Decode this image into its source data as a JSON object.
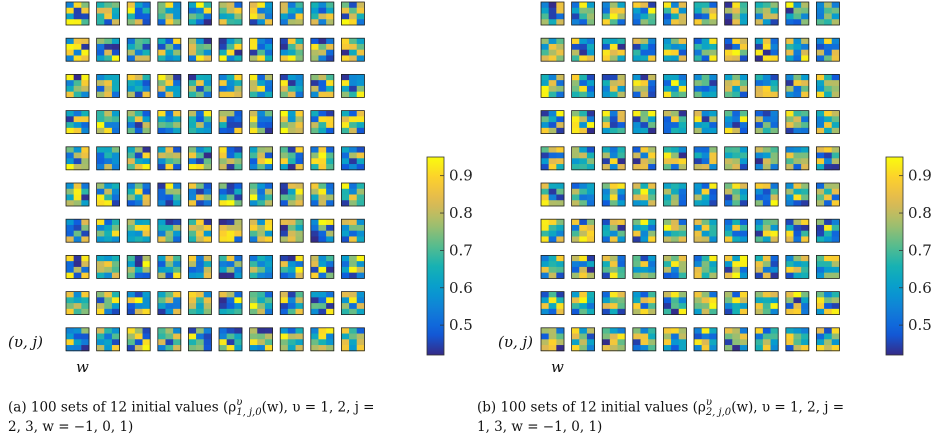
{
  "chart_data": [
    {
      "type": "heatmap",
      "layout": "10x10 grid of 4x3 heatmap tiles",
      "rows": 10,
      "cols": 10,
      "tile_cells": [
        4,
        3
      ],
      "y_label": "(υ, j)",
      "x_label": "w",
      "colorbar": {
        "min": 0.42,
        "max": 0.95,
        "ticks": [
          0.5,
          0.6,
          0.7,
          0.8,
          0.9
        ],
        "tick_labels": [
          "0.5",
          "0.6",
          "0.7",
          "0.8",
          "0.9"
        ],
        "colormap": "parula"
      },
      "caption_line1": "(a)  100 sets of 12 initial values (ρ",
      "caption_sup": "υ",
      "caption_sub": "1, j,0",
      "caption_rest": "(w),  υ = 1, 2,  j =",
      "caption_line2": "2, 3,  w = −1, 0, 1)",
      "seed": 7
    },
    {
      "type": "heatmap",
      "layout": "10x10 grid of 4x3 heatmap tiles",
      "rows": 10,
      "cols": 10,
      "tile_cells": [
        4,
        3
      ],
      "y_label": "(υ, j)",
      "x_label": "w",
      "colorbar": {
        "min": 0.42,
        "max": 0.95,
        "ticks": [
          0.5,
          0.6,
          0.7,
          0.8,
          0.9
        ],
        "tick_labels": [
          "0.5",
          "0.6",
          "0.7",
          "0.8",
          "0.9"
        ],
        "colormap": "parula"
      },
      "caption_line1": "(b)  100 sets of 12 initial values (ρ",
      "caption_sup": "υ",
      "caption_sub": "2, j,0",
      "caption_rest": "(w),  υ = 1, 2,  j =",
      "caption_line2": "1, 3,  w = −1, 0, 1)",
      "seed": 19
    }
  ]
}
